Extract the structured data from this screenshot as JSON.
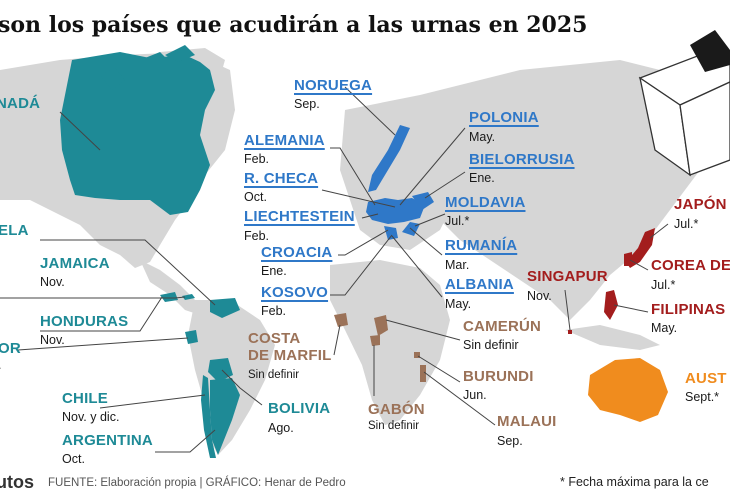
{
  "title": "son los países que acudirán a las urnas en 2025",
  "colors": {
    "americas": "#1e8a96",
    "europe": "#2f78c8",
    "africa": "#9b7258",
    "asia": "#a31d1d",
    "oceania": "#f08c1e",
    "land": "#d6d6d6"
  },
  "countries": {
    "canada": {
      "name": "NADÁ",
      "date": ""
    },
    "venezuela": {
      "name": "ELA",
      "date": ""
    },
    "jamaica": {
      "name": "JAMAICA",
      "date": "Nov."
    },
    "honduras": {
      "name": "HONDURAS",
      "date": "Nov."
    },
    "ecuador": {
      "name": "OR",
      "date": "."
    },
    "chile": {
      "name": "CHILE",
      "date": "Nov. y dic."
    },
    "argentina": {
      "name": "ARGENTINA",
      "date": "Oct."
    },
    "bolivia": {
      "name": "BOLIVIA",
      "date": "Ago."
    },
    "noruega": {
      "name": "NORUEGA",
      "date": "Sep."
    },
    "alemania": {
      "name": "ALEMANIA",
      "date": "Feb."
    },
    "rcheca": {
      "name": "R. CHECA",
      "date": "Oct."
    },
    "liechtenstein": {
      "name": "LIECHTESTEIN",
      "date": "Feb."
    },
    "croacia": {
      "name": "CROACIA",
      "date": "Ene."
    },
    "kosovo": {
      "name": "KOSOVO",
      "date": "Feb."
    },
    "polonia": {
      "name": "POLONIA",
      "date": "May."
    },
    "bielorrusia": {
      "name": "BIELORRUSIA",
      "date": "Ene."
    },
    "moldavia": {
      "name": "MOLDAVIA",
      "date": "Jul.*"
    },
    "rumania": {
      "name": "RUMANÍA",
      "date": "Mar."
    },
    "albania": {
      "name": "ALBANIA",
      "date": "May."
    },
    "costademarfil": {
      "name1": "COSTA",
      "name2": "DE MARFIL",
      "date": "Sin definir"
    },
    "gabon": {
      "name": "GABÓN",
      "date": "Sin definir"
    },
    "camerun": {
      "name": "CAMERÚN",
      "date": "Sin definir"
    },
    "burundi": {
      "name": "BURUNDI",
      "date": "Jun."
    },
    "malaui": {
      "name": "MALAUI",
      "date": "Sep."
    },
    "singapur": {
      "name": "SINGAPUR",
      "date": "Nov."
    },
    "japon": {
      "name": "JAPÓN",
      "date": "Jul.*"
    },
    "corea": {
      "name": "COREA DE",
      "date": "Jul.*"
    },
    "filipinas": {
      "name": "FILIPINAS",
      "date": "May."
    },
    "australia": {
      "name": "AUST",
      "date": "Sept.*"
    }
  },
  "footer": {
    "brand": "utos",
    "source": "FUENTE: Elaboración propia  |  GRÁFICO: Henar de Pedro",
    "note": "* Fecha máxima para la ce"
  }
}
